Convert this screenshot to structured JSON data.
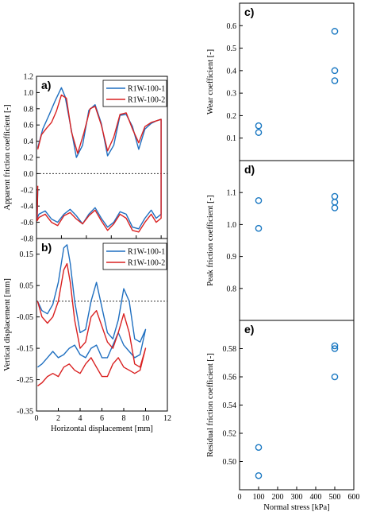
{
  "colors": {
    "blue": "#1f6fc0",
    "red": "#d92020",
    "circle": "#1a78c2"
  },
  "chart_data": [
    {
      "panel": "a)",
      "type": "line",
      "ylabel": "Apparent friction coefficient [-]",
      "xlim": [
        0,
        10.5
      ],
      "ylim": [
        -0.8,
        1.2
      ],
      "yticks": [
        "1.2",
        "1.0",
        "0.8",
        "0.6",
        "0.4",
        "0.2",
        "0.0",
        "-0.2",
        "-0.4",
        "-0.6",
        "-0.8"
      ],
      "ytick_values": [
        1.2,
        1.0,
        0.8,
        0.6,
        0.4,
        0.2,
        0.0,
        -0.2,
        -0.4,
        -0.6,
        -0.8
      ],
      "xtick_values": [
        0,
        2,
        4,
        6,
        8,
        10
      ],
      "zero_line": true,
      "legend": {
        "position": "top-right",
        "entries": [
          "R1W-100-1",
          "R1W-100-2"
        ]
      },
      "series": [
        {
          "name": "R1W-100-1",
          "color": "blue",
          "x": [
            0.1,
            0.5,
            1.0,
            1.5,
            2.0,
            2.3,
            2.7,
            3.2,
            3.7,
            4.2,
            4.7,
            5.2,
            5.7,
            6.2,
            6.7,
            7.2,
            7.7,
            8.2,
            8.7,
            9.2,
            9.6,
            10.0,
            10.0,
            9.6,
            9.2,
            8.7,
            8.2,
            7.7,
            7.2,
            6.7,
            6.2,
            5.7,
            5.2,
            4.7,
            4.2,
            3.7,
            3.2,
            2.7,
            2.2,
            1.7,
            1.2,
            0.7,
            0.2,
            0.05,
            0.1
          ],
          "y": [
            0.32,
            0.55,
            0.72,
            0.9,
            1.06,
            0.95,
            0.62,
            0.2,
            0.35,
            0.78,
            0.85,
            0.62,
            0.22,
            0.35,
            0.72,
            0.73,
            0.58,
            0.3,
            0.55,
            0.62,
            0.65,
            0.67,
            -0.5,
            -0.55,
            -0.45,
            -0.55,
            -0.68,
            -0.66,
            -0.5,
            -0.47,
            -0.6,
            -0.66,
            -0.55,
            -0.42,
            -0.5,
            -0.62,
            -0.52,
            -0.44,
            -0.5,
            -0.6,
            -0.56,
            -0.46,
            -0.5,
            -0.55,
            -0.2
          ]
        },
        {
          "name": "R1W-100-2",
          "color": "red",
          "x": [
            0.1,
            0.4,
            0.8,
            1.2,
            1.6,
            2.0,
            2.4,
            2.8,
            3.3,
            3.8,
            4.3,
            4.7,
            5.2,
            5.7,
            6.2,
            6.7,
            7.2,
            7.7,
            8.2,
            8.7,
            9.2,
            9.6,
            10.0,
            10.0,
            9.6,
            9.2,
            8.7,
            8.2,
            7.7,
            7.2,
            6.7,
            6.2,
            5.7,
            5.2,
            4.7,
            4.2,
            3.7,
            3.2,
            2.7,
            2.2,
            1.7,
            1.2,
            0.7,
            0.2,
            0.05,
            0.1
          ],
          "y": [
            0.3,
            0.48,
            0.56,
            0.63,
            0.77,
            0.97,
            0.93,
            0.52,
            0.25,
            0.5,
            0.8,
            0.83,
            0.6,
            0.28,
            0.45,
            0.73,
            0.75,
            0.55,
            0.38,
            0.58,
            0.63,
            0.65,
            0.67,
            -0.55,
            -0.6,
            -0.5,
            -0.6,
            -0.72,
            -0.7,
            -0.55,
            -0.5,
            -0.62,
            -0.7,
            -0.58,
            -0.45,
            -0.52,
            -0.62,
            -0.56,
            -0.48,
            -0.52,
            -0.64,
            -0.6,
            -0.5,
            -0.54,
            -0.58,
            -0.15
          ]
        }
      ]
    },
    {
      "panel": "b)",
      "type": "line",
      "ylabel": "Vertical displacement [mm]",
      "xlabel": "Horizontal displacement [mm]",
      "xlim": [
        0,
        12
      ],
      "ylim": [
        -0.35,
        0.2
      ],
      "xticks": [
        "0",
        "2",
        "4",
        "6",
        "8",
        "10",
        "12"
      ],
      "xtick_values": [
        0,
        2,
        4,
        6,
        8,
        10,
        12
      ],
      "yticks": [
        "0.15",
        "0.05",
        "-0.05",
        "-0.15",
        "-0.25",
        "-0.35"
      ],
      "ytick_values": [
        0.15,
        0.05,
        -0.05,
        -0.15,
        -0.25,
        -0.35
      ],
      "zero_line": true,
      "legend": {
        "position": "top-right",
        "entries": [
          "R1W-100-1",
          "R1W-100-2"
        ]
      },
      "series": [
        {
          "name": "R1W-100-1",
          "color": "blue",
          "x": [
            0.1,
            0.5,
            1.0,
            1.5,
            2.0,
            2.5,
            2.8,
            3.1,
            3.5,
            4.0,
            4.5,
            5.0,
            5.5,
            6.0,
            6.5,
            7.0,
            7.5,
            8.0,
            8.5,
            9.0,
            9.5,
            10.0,
            9.5,
            9.0,
            8.5,
            8.0,
            7.5,
            7.0,
            6.5,
            6.0,
            5.5,
            5.0,
            4.5,
            4.0,
            3.5,
            3.0,
            2.5,
            2.0,
            1.5,
            1.0,
            0.5,
            0.1
          ],
          "y": [
            0.0,
            -0.03,
            -0.04,
            -0.01,
            0.06,
            0.17,
            0.18,
            0.12,
            0.0,
            -0.1,
            -0.09,
            0.0,
            0.06,
            -0.02,
            -0.1,
            -0.12,
            -0.06,
            0.04,
            0.0,
            -0.12,
            -0.13,
            -0.09,
            -0.17,
            -0.18,
            -0.16,
            -0.14,
            -0.1,
            -0.14,
            -0.18,
            -0.18,
            -0.14,
            -0.15,
            -0.18,
            -0.17,
            -0.14,
            -0.15,
            -0.17,
            -0.18,
            -0.16,
            -0.18,
            -0.2,
            -0.21
          ]
        },
        {
          "name": "R1W-100-2",
          "color": "red",
          "x": [
            0.1,
            0.5,
            1.0,
            1.5,
            2.0,
            2.5,
            2.8,
            3.1,
            3.5,
            4.0,
            4.5,
            5.0,
            5.5,
            6.0,
            6.5,
            7.0,
            7.5,
            8.0,
            8.5,
            9.0,
            9.5,
            10.0,
            9.5,
            9.0,
            8.5,
            8.0,
            7.5,
            7.0,
            6.5,
            6.0,
            5.5,
            5.0,
            4.5,
            4.0,
            3.5,
            3.0,
            2.5,
            2.0,
            1.5,
            1.0,
            0.5,
            0.1
          ],
          "y": [
            0.0,
            -0.05,
            -0.07,
            -0.05,
            0.0,
            0.1,
            0.12,
            0.06,
            -0.06,
            -0.15,
            -0.13,
            -0.05,
            -0.03,
            -0.08,
            -0.13,
            -0.15,
            -0.1,
            -0.04,
            -0.1,
            -0.2,
            -0.21,
            -0.15,
            -0.22,
            -0.23,
            -0.22,
            -0.21,
            -0.18,
            -0.2,
            -0.24,
            -0.24,
            -0.21,
            -0.18,
            -0.2,
            -0.23,
            -0.22,
            -0.2,
            -0.21,
            -0.24,
            -0.23,
            -0.24,
            -0.26,
            -0.27
          ]
        }
      ]
    },
    {
      "panel": "c)",
      "type": "scatter",
      "ylabel": "Wear coefficient [-]",
      "xlim": [
        0,
        600
      ],
      "ylim": [
        0,
        0.7
      ],
      "yticks": [
        "0.1",
        "0.2",
        "0.3",
        "0.4",
        "0.5",
        "0.6"
      ],
      "ytick_values": [
        0.1,
        0.2,
        0.3,
        0.4,
        0.5,
        0.6
      ],
      "points": [
        [
          100,
          0.155
        ],
        [
          100,
          0.125
        ],
        [
          500,
          0.575
        ],
        [
          500,
          0.4
        ],
        [
          500,
          0.355
        ]
      ]
    },
    {
      "panel": "d)",
      "type": "scatter",
      "ylabel": "Peak friction coefficient [-]",
      "xlim": [
        0,
        600
      ],
      "ylim": [
        0.7,
        1.2
      ],
      "yticks": [
        "1.1",
        "1.0",
        "0.9",
        "0.8"
      ],
      "ytick_values": [
        1.1,
        1.0,
        0.9,
        0.8
      ],
      "points": [
        [
          100,
          1.075
        ],
        [
          100,
          0.988
        ],
        [
          500,
          1.088
        ],
        [
          500,
          1.07
        ],
        [
          500,
          1.052
        ]
      ]
    },
    {
      "panel": "e)",
      "type": "scatter",
      "ylabel": "Residual friction coefficient [-]",
      "xlabel": "Normal stress [kPa]",
      "xlim": [
        0,
        600
      ],
      "ylim": [
        0.48,
        0.6
      ],
      "xticks": [
        "0",
        "100",
        "200",
        "300",
        "400",
        "500",
        "600"
      ],
      "xtick_values": [
        0,
        100,
        200,
        300,
        400,
        500,
        600
      ],
      "yticks": [
        "0.58",
        "0.56",
        "0.54",
        "0.52",
        "0.50"
      ],
      "ytick_values": [
        0.58,
        0.56,
        0.54,
        0.52,
        0.5
      ],
      "points": [
        [
          100,
          0.51
        ],
        [
          100,
          0.49
        ],
        [
          500,
          0.582
        ],
        [
          500,
          0.58
        ],
        [
          500,
          0.56
        ]
      ]
    }
  ]
}
